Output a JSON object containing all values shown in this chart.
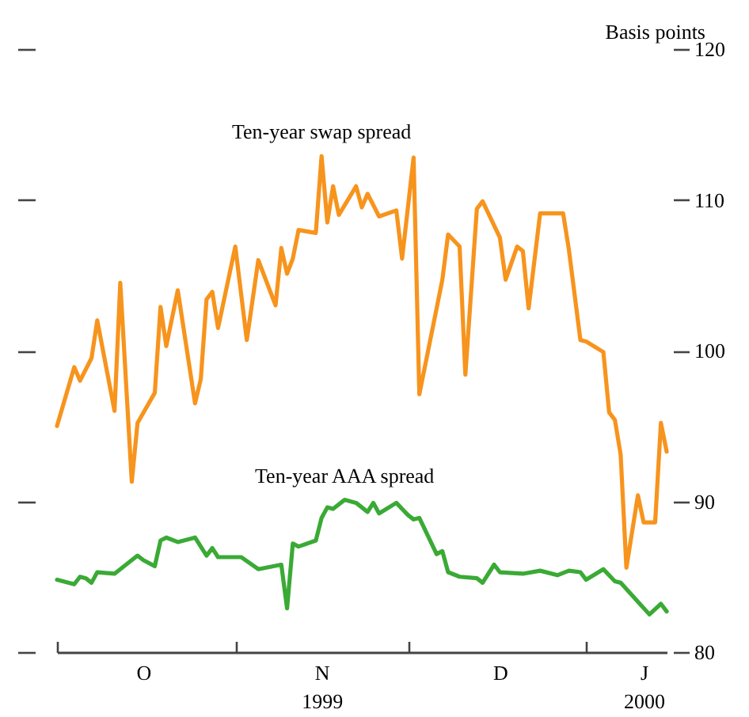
{
  "chart_data": {
    "type": "line",
    "ylabel": "Basis points",
    "xlim": [
      "1999-10-01",
      "2000-01-15"
    ],
    "xticks": [
      {
        "value": "1999-10-01",
        "label": null
      },
      {
        "value": "1999-10-16",
        "label": "O"
      },
      {
        "value": "1999-11-01",
        "label": null
      },
      {
        "value": "1999-11-16",
        "label": "N\n1999"
      },
      {
        "value": "1999-12-01",
        "label": null
      },
      {
        "value": "1999-12-17",
        "label": "D"
      },
      {
        "value": "2000-01-01",
        "label": null
      },
      {
        "value": "2000-01-11",
        "label": "J\n2000"
      }
    ],
    "ylim": [
      80,
      120
    ],
    "yticks": [
      80,
      90,
      100,
      110,
      120
    ],
    "series": [
      {
        "name": "Ten-year swap spread",
        "color": "#f7941d",
        "x": [
          "1999-10-01",
          "1999-10-04",
          "1999-10-05",
          "1999-10-07",
          "1999-10-08",
          "1999-10-11",
          "1999-10-12",
          "1999-10-14",
          "1999-10-15",
          "1999-10-18",
          "1999-10-19",
          "1999-10-20",
          "1999-10-22",
          "1999-10-25",
          "1999-10-26",
          "1999-10-27",
          "1999-10-28",
          "1999-10-29",
          "1999-11-01",
          "1999-11-03",
          "1999-11-05",
          "1999-11-08",
          "1999-11-09",
          "1999-11-10",
          "1999-11-11",
          "1999-11-12",
          "1999-11-15",
          "1999-11-16",
          "1999-11-17",
          "1999-11-18",
          "1999-11-19",
          "1999-11-22",
          "1999-11-23",
          "1999-11-24",
          "1999-11-26",
          "1999-11-29",
          "1999-11-30",
          "1999-12-02",
          "1999-12-03",
          "1999-12-07",
          "1999-12-08",
          "1999-12-10",
          "1999-12-11",
          "1999-12-13",
          "1999-12-14",
          "1999-12-17",
          "1999-12-18",
          "1999-12-20",
          "1999-12-21",
          "1999-12-22",
          "1999-12-24",
          "1999-12-28",
          "1999-12-29",
          "1999-12-31",
          "2000-01-01",
          "2000-01-04",
          "2000-01-05",
          "2000-01-06",
          "2000-01-07",
          "2000-01-08",
          "2000-01-10",
          "2000-01-11",
          "2000-01-13",
          "2000-01-14",
          "2000-01-15"
        ],
        "values": [
          95.0,
          98.9,
          98.0,
          99.5,
          102.0,
          96.0,
          104.5,
          91.3,
          95.2,
          97.2,
          102.9,
          100.3,
          104.0,
          96.5,
          98.1,
          103.4,
          103.9,
          101.5,
          106.9,
          100.7,
          106.0,
          103.0,
          106.8,
          105.1,
          106.1,
          108.0,
          107.8,
          112.9,
          108.5,
          110.9,
          109.0,
          110.9,
          109.5,
          110.4,
          108.9,
          109.3,
          106.1,
          112.8,
          97.1,
          104.7,
          107.7,
          106.9,
          98.4,
          109.4,
          109.9,
          107.5,
          104.7,
          106.9,
          106.6,
          102.8,
          109.1,
          109.1,
          106.7,
          100.7,
          100.6,
          99.9,
          95.9,
          95.4,
          93.1,
          85.6,
          90.4,
          88.6,
          88.6,
          95.2,
          93.3
        ]
      },
      {
        "name": "Ten-year AAA spread",
        "color": "#3aaa35",
        "x": [
          "1999-10-01",
          "1999-10-04",
          "1999-10-05",
          "1999-10-06",
          "1999-10-07",
          "1999-10-08",
          "1999-10-11",
          "1999-10-13",
          "1999-10-15",
          "1999-10-16",
          "1999-10-18",
          "1999-10-19",
          "1999-10-20",
          "1999-10-22",
          "1999-10-25",
          "1999-10-27",
          "1999-10-28",
          "1999-10-29",
          "1999-11-02",
          "1999-11-05",
          "1999-11-09",
          "1999-11-10",
          "1999-11-11",
          "1999-11-12",
          "1999-11-15",
          "1999-11-16",
          "1999-11-17",
          "1999-11-18",
          "1999-11-20",
          "1999-11-22",
          "1999-11-24",
          "1999-11-25",
          "1999-11-26",
          "1999-11-29",
          "1999-12-01",
          "1999-12-02",
          "1999-12-03",
          "1999-12-06",
          "1999-12-07",
          "1999-12-08",
          "1999-12-10",
          "1999-12-13",
          "1999-12-14",
          "1999-12-16",
          "1999-12-17",
          "1999-12-21",
          "1999-12-24",
          "1999-12-27",
          "1999-12-29",
          "1999-12-31",
          "2000-01-01",
          "2000-01-04",
          "2000-01-06",
          "2000-01-07",
          "2000-01-12",
          "2000-01-14",
          "2000-01-15"
        ],
        "values": [
          84.8,
          84.5,
          85.0,
          84.9,
          84.6,
          85.3,
          85.2,
          85.8,
          86.4,
          86.1,
          85.7,
          87.4,
          87.6,
          87.3,
          87.6,
          86.4,
          86.9,
          86.3,
          86.3,
          85.5,
          85.8,
          82.9,
          87.2,
          87.0,
          87.4,
          88.9,
          89.6,
          89.5,
          90.1,
          89.9,
          89.3,
          89.9,
          89.2,
          89.9,
          89.1,
          88.8,
          88.9,
          86.5,
          86.7,
          85.3,
          85.0,
          84.9,
          84.6,
          85.8,
          85.3,
          85.2,
          85.4,
          85.1,
          85.4,
          85.3,
          84.8,
          85.5,
          84.7,
          84.6,
          82.5,
          83.2,
          82.7
        ]
      }
    ]
  }
}
